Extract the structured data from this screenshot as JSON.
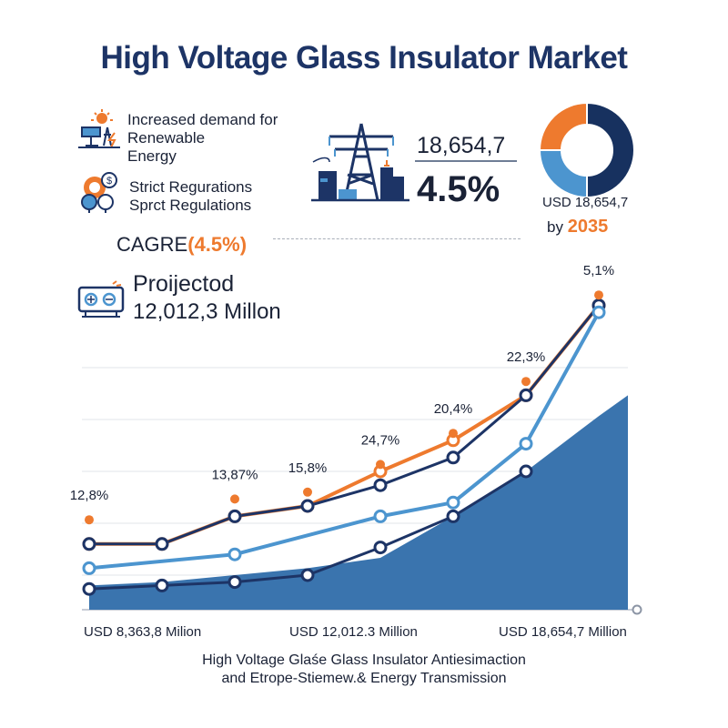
{
  "title": "High Voltage Glass Insulator Market",
  "drivers": [
    {
      "icon": "solar-tower-icon",
      "text": "Increased demand for\nRenewable\nEnergy"
    },
    {
      "icon": "regulation-gears-icon",
      "text": "Strict Regurations\nSprct Regulations"
    }
  ],
  "cagr": {
    "label": "CAGRE",
    "value": "(4.5%)"
  },
  "projection": {
    "label": "Proijectod",
    "value": "12,012,3 Millon",
    "icon": "projector-icon"
  },
  "stats": {
    "value": "18,654,7",
    "percent": "4.5%",
    "icon": "power-tower-icon"
  },
  "donut": {
    "label": "USD 18,654,7",
    "by": "by",
    "year": "2035",
    "segments": [
      {
        "name": "dark",
        "value": 50,
        "color": "#17315f"
      },
      {
        "name": "light",
        "value": 25,
        "color": "#4c95cf"
      },
      {
        "name": "orange",
        "value": 25,
        "color": "#ee7a2e"
      }
    ]
  },
  "axis_labels": [
    "USD 8,363,8 Milion",
    "USD 12,012.3 Million",
    "USD 18,654,7 Million"
  ],
  "source": "High Voltage Glaśe Glass Insulator Antiesimaction\nand Etrope-Stiemew.& Energy Transmission",
  "chart_data": {
    "type": "line",
    "x": [
      1,
      2,
      3,
      4,
      5,
      6,
      7,
      8
    ],
    "xlim": [
      0.9,
      8.4
    ],
    "ylim": [
      0,
      100
    ],
    "series": [
      {
        "values": [
          19,
          19,
          27,
          30,
          40,
          49,
          62,
          88
        ],
        "color": "#ee7a2e",
        "width": 4
      },
      {
        "values": [
          19,
          19,
          27,
          30,
          36,
          44,
          62,
          88
        ],
        "color": "#1d3466",
        "width": 3
      },
      {
        "values": [
          12,
          null,
          16,
          null,
          27,
          31,
          48,
          86
        ],
        "color": "#4c95cf",
        "width": 4
      },
      {
        "values": [
          6,
          7,
          8,
          10,
          18,
          27,
          40,
          null
        ],
        "color": "#1d3466",
        "width": 3
      }
    ],
    "area": {
      "values": [
        7,
        8,
        10,
        12,
        15,
        27,
        40,
        56
      ],
      "color": "#3a74ae"
    },
    "annotations": [
      {
        "x": 1,
        "y": 26,
        "label": "12,8%"
      },
      {
        "x": 2,
        "y": null,
        "label": ""
      },
      {
        "x": 3,
        "y": 32,
        "label": "13,87%"
      },
      {
        "x": 4,
        "y": 34,
        "label": "15,8%"
      },
      {
        "x": 5,
        "y": 42,
        "label": "24,7%"
      },
      {
        "x": 6,
        "y": 51,
        "label": "20,4%"
      },
      {
        "x": 7,
        "y": 66,
        "label": "22,3%"
      },
      {
        "x": 8,
        "y": 91,
        "label": "5,1%"
      }
    ]
  },
  "colors": {
    "accent": "#ee7a2e",
    "navy": "#1d3466",
    "light_blue": "#4c95cf",
    "area": "#3a74ae"
  }
}
